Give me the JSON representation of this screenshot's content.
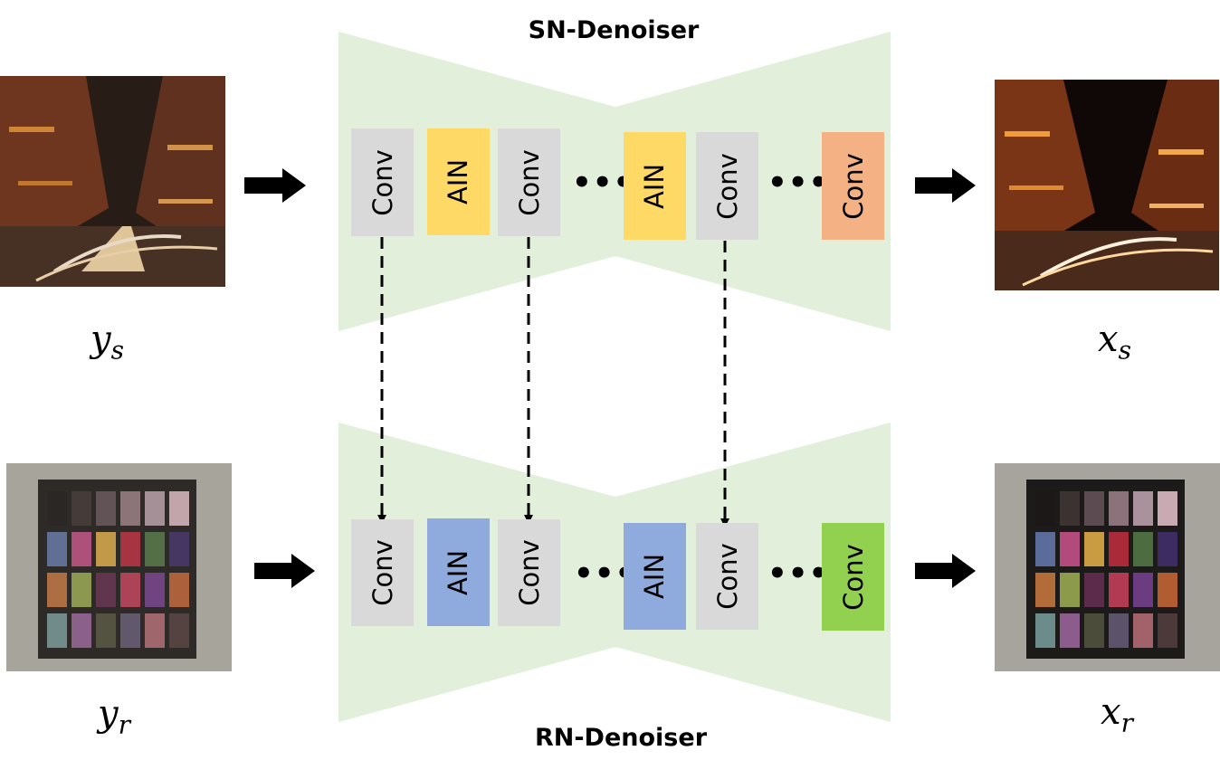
{
  "top": {
    "title": "SN-Denoiser",
    "blocks": [
      "Conv",
      "AIN",
      "Conv",
      "AIN",
      "Conv",
      "Conv"
    ],
    "dots": "•••",
    "input_symbol": "y",
    "input_sub": "s",
    "output_symbol": "x",
    "output_sub": "s"
  },
  "bottom": {
    "title": "RN-Denoiser",
    "blocks": [
      "Conv",
      "AIN",
      "Conv",
      "AIN",
      "Conv",
      "Conv"
    ],
    "dots": "•••",
    "input_symbol": "y",
    "input_sub": "r",
    "output_symbol": "x",
    "output_sub": "r"
  },
  "colors": {
    "hourglass": "#e2efda",
    "conv_gray": "#d9d9d9",
    "ain_yellow": "#ffd966",
    "conv_orange": "#f4b183",
    "ain_blue": "#8faadc",
    "conv_green": "#92d050"
  },
  "images": {
    "noisy_street": "street-night-photo-noisy",
    "clean_street": "street-night-photo-clean",
    "noisy_chart": "color-checker-photo-noisy",
    "clean_chart": "color-checker-photo-clean"
  }
}
